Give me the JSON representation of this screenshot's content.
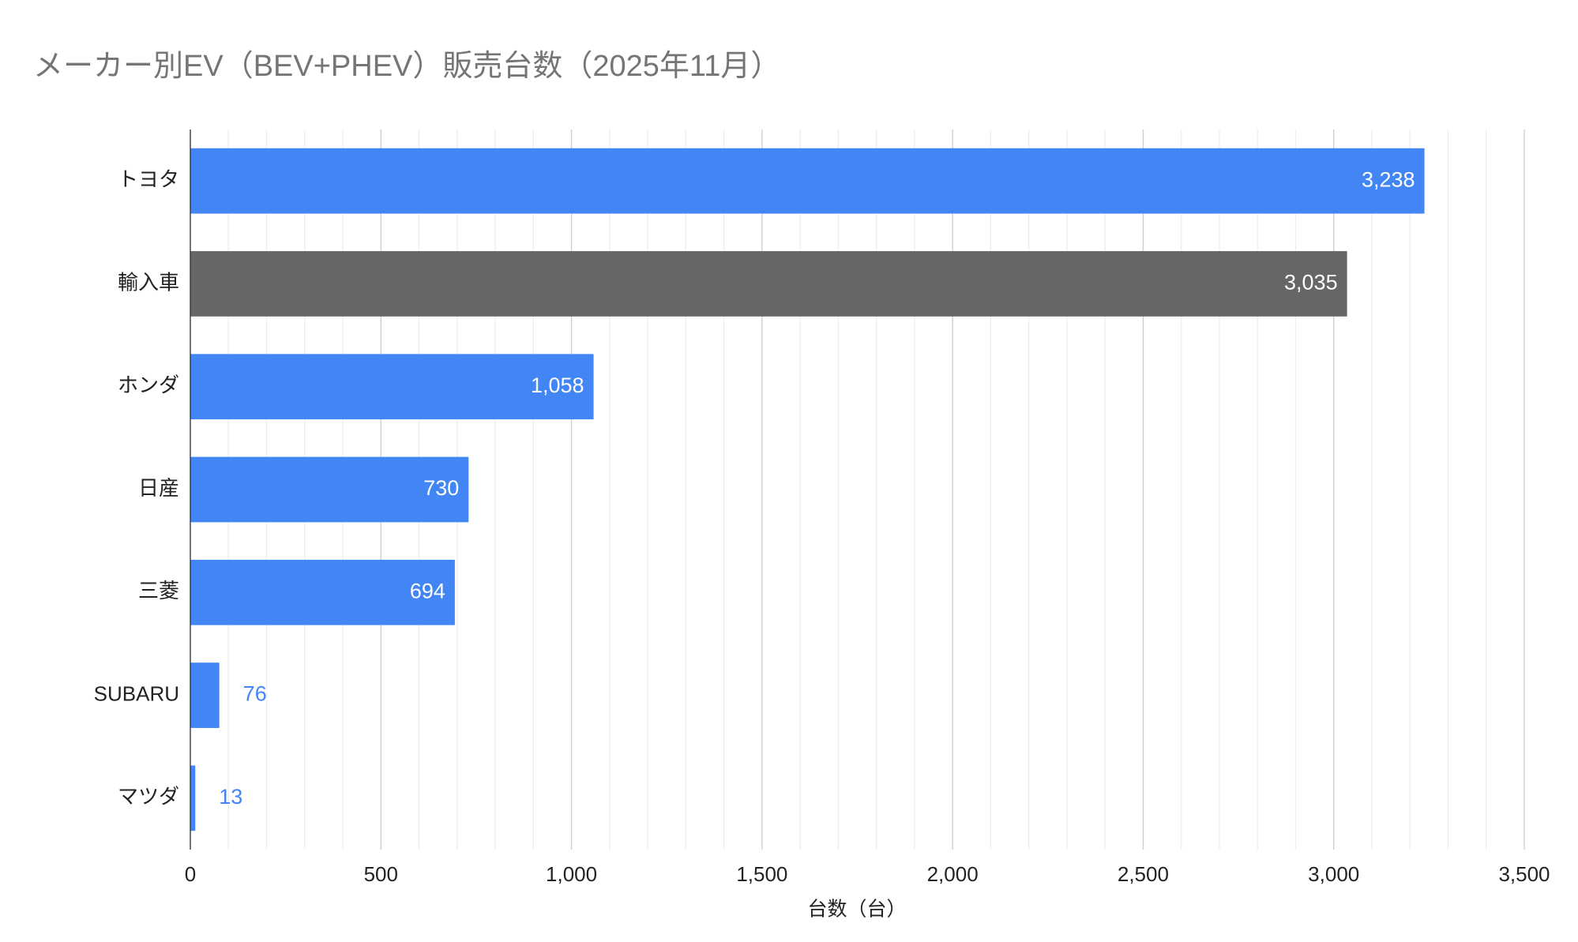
{
  "chart_data": {
    "type": "hbar",
    "title": "メーカー別EV（BEV+PHEV）販売台数（2025年11月）",
    "categories": [
      "トヨタ",
      "輸入車",
      "ホンダ",
      "日産",
      "三菱",
      "SUBARU",
      "マツダ"
    ],
    "values": [
      3238,
      3035,
      1058,
      730,
      694,
      76,
      13
    ],
    "value_labels": [
      "3,238",
      "3,035",
      "1,058",
      "730",
      "694",
      "76",
      "13"
    ],
    "colors": [
      "#4285f4",
      "#666666",
      "#4285f4",
      "#4285f4",
      "#4285f4",
      "#4285f4",
      "#4285f4"
    ],
    "xlabel": "台数（台）",
    "xlim": [
      0,
      3500
    ],
    "xticks": [
      0,
      500,
      {
        "value": 1000,
        "label": "1,000"
      },
      {
        "value": 1500,
        "label": "1,500"
      },
      {
        "value": 2000,
        "label": "2,000"
      },
      {
        "value": 2500,
        "label": "2,500"
      },
      {
        "value": 3000,
        "label": "3,000"
      },
      {
        "value": 3500,
        "label": "3,500"
      }
    ],
    "xminorticks": [
      100,
      200,
      300,
      400,
      600,
      700,
      800,
      900,
      1100,
      1200,
      1300,
      1400,
      1600,
      1700,
      1800,
      1900,
      2100,
      2200,
      2300,
      2400,
      2600,
      2700,
      2800,
      2900,
      3100,
      3200,
      3300,
      3400
    ],
    "grid": true
  }
}
